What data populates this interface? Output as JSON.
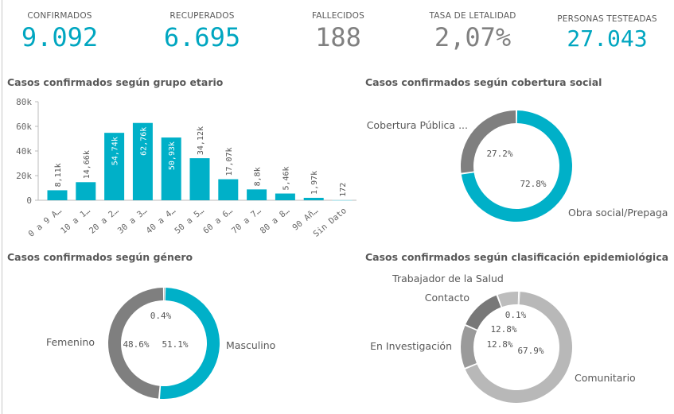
{
  "kpis": [
    {
      "label": "CONFIRMADOS",
      "value": "9.092",
      "color": "#00a6c0"
    },
    {
      "label": "RECUPERADOS",
      "value": "6.695",
      "color": "#00a6c0"
    },
    {
      "label": "FALLECIDOS",
      "value": "188",
      "color": "#808080"
    },
    {
      "label": "TASA DE LETALIDAD",
      "value": "2,07%",
      "color": "#808080"
    },
    {
      "label": "PERSONAS TESTEADAS",
      "value": "27.043",
      "color": "#00a6c0"
    }
  ],
  "titles": {
    "age": "Casos confirmados según grupo etario",
    "coverage": "Casos confirmados según cobertura social",
    "gender": "Casos confirmados según género",
    "epi": "Casos confirmados según clasificación epidemiológica"
  },
  "chart_data": [
    {
      "type": "bar",
      "title": "Casos confirmados según grupo etario",
      "categories": [
        "0 a 9 A…",
        "10 a 1…",
        "20 a 2…",
        "30 a 3…",
        "40 a 4…",
        "50 a 5…",
        "60 a 6…",
        "70 a 7…",
        "80 a 8…",
        "90 Añ…",
        "Sin Dato"
      ],
      "values": [
        8110,
        14660,
        54740,
        62760,
        50930,
        34120,
        17070,
        8800,
        5460,
        1970,
        172
      ],
      "value_labels": [
        "8,11k",
        "14,66k",
        "54,74k",
        "62,76k",
        "50,93k",
        "34,12k",
        "17,07k",
        "8,8k",
        "5,46k",
        "1,97k",
        "172"
      ],
      "yticks": [
        "0",
        "20k",
        "40k",
        "60k",
        "80k"
      ],
      "ylim": [
        0,
        80000
      ],
      "color": "#00b0c8"
    },
    {
      "type": "pie",
      "title": "Casos confirmados según cobertura social",
      "slices": [
        {
          "label": "Obra social/Prepaga",
          "pct": "72.8%",
          "value": 72.8,
          "color": "#00b0c8"
        },
        {
          "label": "Cobertura Pública ...",
          "pct": "27.2%",
          "value": 27.2,
          "color": "#7f7f7f"
        }
      ]
    },
    {
      "type": "pie",
      "title": "Casos confirmados según género",
      "slices": [
        {
          "label": "Masculino",
          "pct": "51.1%",
          "value": 51.1,
          "color": "#00b0c8"
        },
        {
          "label": "Femenino",
          "pct": "48.6%",
          "value": 48.6,
          "color": "#7f7f7f"
        },
        {
          "label": "",
          "pct": "0.4%",
          "value": 0.4,
          "color": "#bbbbbb"
        }
      ]
    },
    {
      "type": "pie",
      "title": "Casos confirmados según clasificación epidemiológica",
      "slices": [
        {
          "label": "Comunitario",
          "pct": "67.9%",
          "value": 67.9,
          "color": "#b8b8b8"
        },
        {
          "label": "En Investigación",
          "pct": "12.8%",
          "value": 12.8,
          "color": "#9a9a9a"
        },
        {
          "label": "Contacto",
          "pct": "12.8%",
          "value": 12.8,
          "color": "#787878"
        },
        {
          "label": "Trabajador de la Salud",
          "pct": "",
          "value": 6.4,
          "color": "#bdbdbd"
        },
        {
          "label": "",
          "pct": "0.1%",
          "value": 0.1,
          "color": "#cfcfcf"
        }
      ]
    }
  ]
}
